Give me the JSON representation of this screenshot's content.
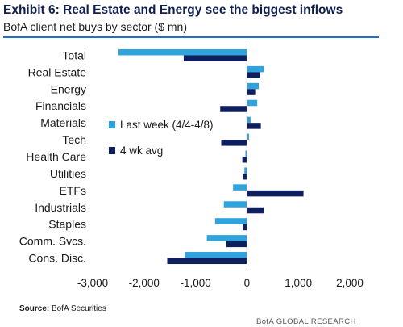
{
  "header": {
    "title": "Exhibit 6: Real Estate and Energy see the biggest inflows",
    "subtitle": "BofA client net buys by sector ($ mn)"
  },
  "footer": {
    "source_label": "Source:",
    "source_text": "BofA Securities",
    "brand": "BofA GLOBAL RESEARCH"
  },
  "colors": {
    "last_week": "#2ea3dd",
    "four_wk_avg": "#0f1f5e",
    "title": "#0f1f4f",
    "rule": "#1f6fd1"
  },
  "chart_data": {
    "type": "bar",
    "orientation": "horizontal",
    "title": "Exhibit 6: Real Estate and Energy see the biggest inflows",
    "subtitle": "BofA client net buys by sector ($ mn)",
    "categories": [
      "Total",
      "Real Estate",
      "Energy",
      "Financials",
      "Materials",
      "Tech",
      "Health Care",
      "Utilities",
      "ETFs",
      "Industrials",
      "Staples",
      "Comm. Svcs.",
      "Cons. Disc."
    ],
    "series": [
      {
        "name": "Last week (4/4-4/8)",
        "values": [
          -2500,
          330,
          230,
          200,
          70,
          40,
          -30,
          -50,
          -270,
          -450,
          -620,
          -780,
          -1200
        ]
      },
      {
        "name": "4 wk avg",
        "values": [
          -1230,
          260,
          160,
          -520,
          270,
          -500,
          -90,
          -80,
          1100,
          330,
          -80,
          -400,
          -1550
        ]
      }
    ],
    "xlim": [
      -3000,
      2000
    ],
    "xticks": [
      "-3,000",
      "-2,000",
      "-1,000",
      "0",
      "1,000",
      "2,000"
    ],
    "xtick_values": [
      -3000,
      -2000,
      -1000,
      0,
      1000,
      2000
    ],
    "legend_position": "center-left",
    "grid": false
  }
}
